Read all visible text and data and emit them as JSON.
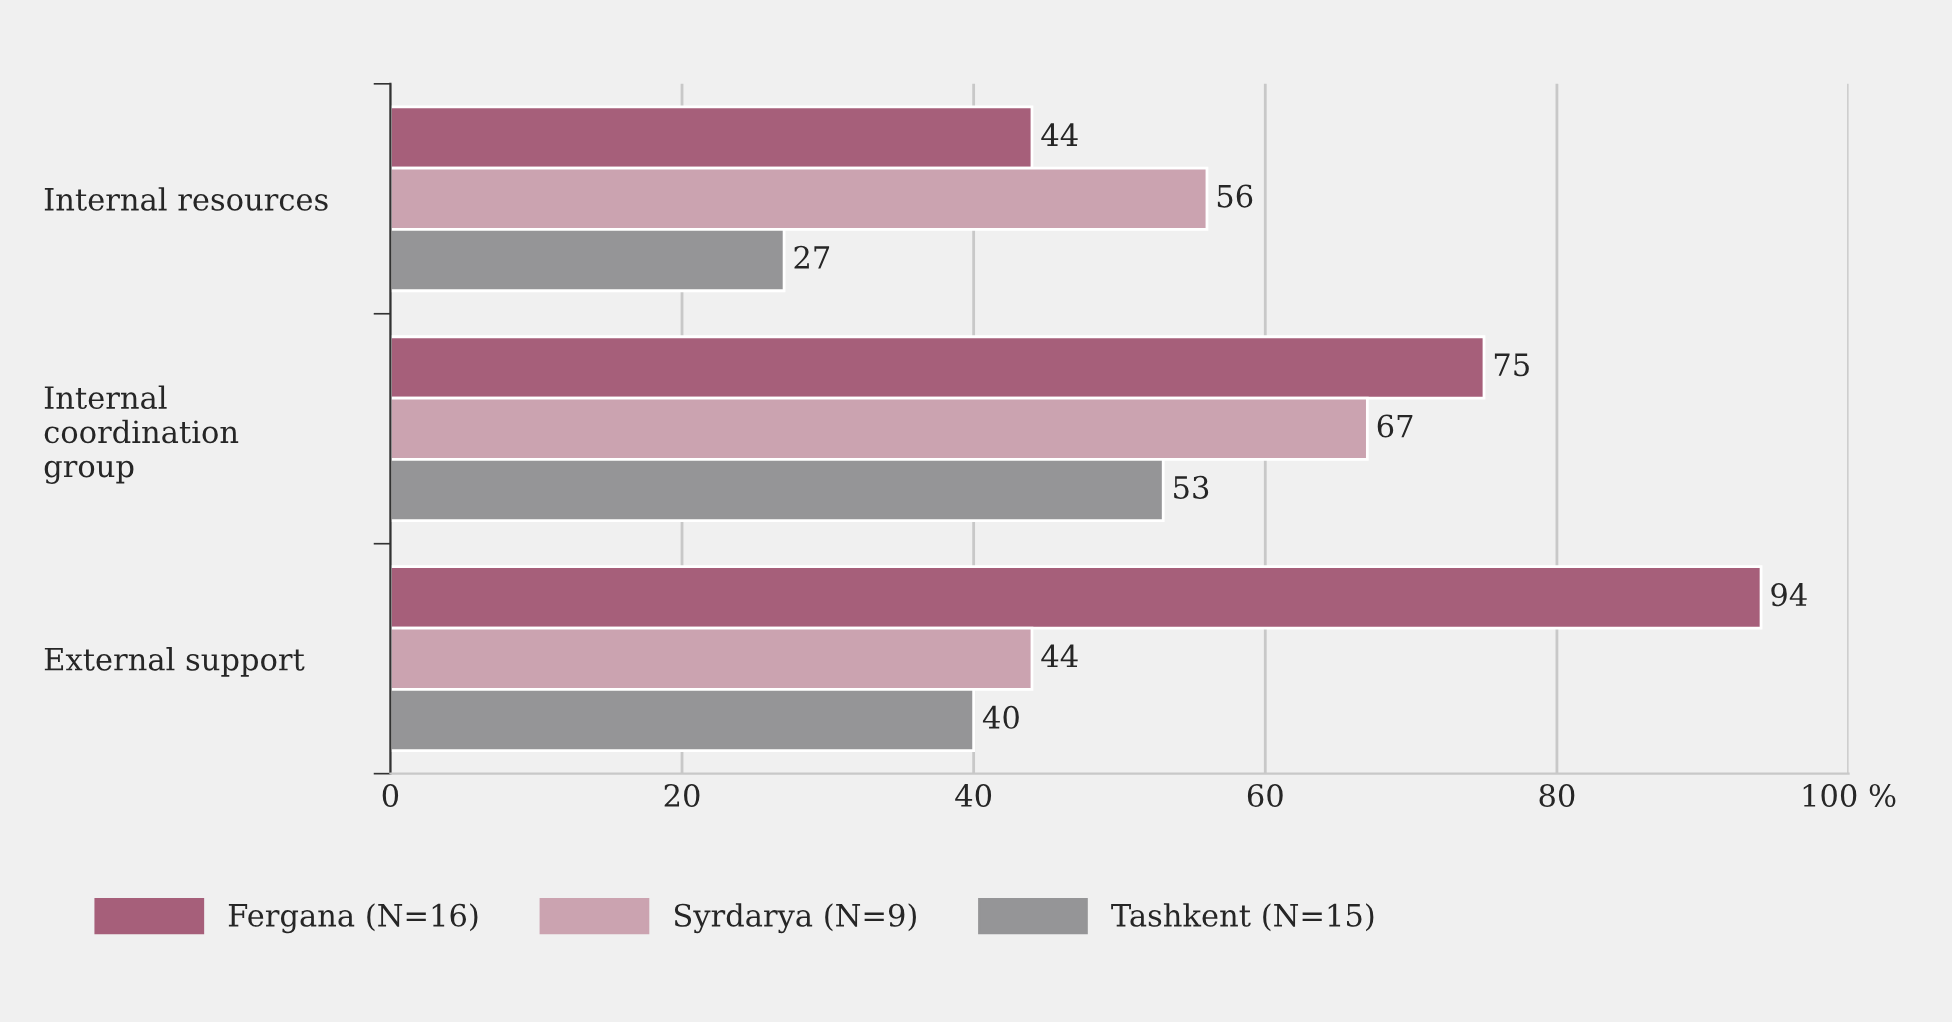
{
  "chart_data": {
    "type": "bar",
    "orientation": "horizontal",
    "categories": [
      "Internal resources",
      "Internal\ncoordination\ngroup",
      "External support"
    ],
    "series": [
      {
        "name": "Fergana (N=16)",
        "color": "#a65f7a",
        "values": [
          44,
          75,
          94
        ]
      },
      {
        "name": "Syrdarya (N=9)",
        "color": "#cba3b0",
        "values": [
          56,
          67,
          44
        ]
      },
      {
        "name": "Tashkent (N=15)",
        "color": "#959597",
        "values": [
          27,
          53,
          40
        ]
      }
    ],
    "xlim": [
      0,
      100
    ],
    "xticks": [
      0,
      20,
      40,
      60,
      80,
      {
        "value": 100,
        "label": "100 %"
      }
    ],
    "grid": "x",
    "legend": "bottom",
    "data_labels": true
  }
}
